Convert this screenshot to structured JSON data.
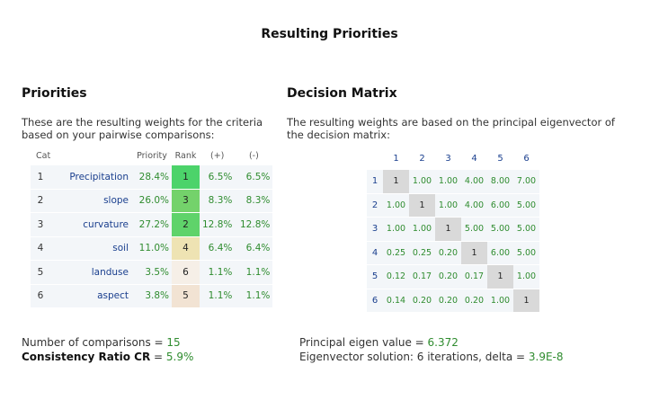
{
  "page_title": "Resulting Priorities",
  "priorities": {
    "title": "Priorities",
    "description": "These are the resulting weights for the criteria based on your pairwise comparisons:",
    "headers": [
      "Cat",
      "Priority",
      "Rank",
      "(+)",
      "(-)"
    ],
    "rows": [
      {
        "idx": "1",
        "name": "Precipitation",
        "priority": "28.4%",
        "rank": "1",
        "plus": "6.5%",
        "minus": "6.5%",
        "rank_color": "#4cd36a"
      },
      {
        "idx": "2",
        "name": "slope",
        "priority": "26.0%",
        "rank": "3",
        "plus": "8.3%",
        "minus": "8.3%",
        "rank_color": "#74d26b"
      },
      {
        "idx": "3",
        "name": "curvature",
        "priority": "27.2%",
        "rank": "2",
        "plus": "12.8%",
        "minus": "12.8%",
        "rank_color": "#5fd36a"
      },
      {
        "idx": "4",
        "name": "soil",
        "priority": "11.0%",
        "rank": "4",
        "plus": "6.4%",
        "minus": "6.4%",
        "rank_color": "#eee3b3"
      },
      {
        "idx": "5",
        "name": "landuse",
        "priority": "3.5%",
        "rank": "6",
        "plus": "1.1%",
        "minus": "1.1%",
        "rank_color": "#f6efe7"
      },
      {
        "idx": "6",
        "name": "aspect",
        "priority": "3.8%",
        "rank": "5",
        "plus": "1.1%",
        "minus": "1.1%",
        "rank_color": "#f2e3d3"
      }
    ]
  },
  "decision_matrix": {
    "title": "Decision Matrix",
    "description": "The resulting weights are based on the principal eigenvector of the decision matrix:",
    "col_headers": [
      "1",
      "2",
      "3",
      "4",
      "5",
      "6"
    ],
    "rows": [
      {
        "label": "1",
        "values": [
          "1",
          "1.00",
          "1.00",
          "4.00",
          "8.00",
          "7.00"
        ]
      },
      {
        "label": "2",
        "values": [
          "1.00",
          "1",
          "1.00",
          "4.00",
          "6.00",
          "5.00"
        ]
      },
      {
        "label": "3",
        "values": [
          "1.00",
          "1.00",
          "1",
          "5.00",
          "5.00",
          "5.00"
        ]
      },
      {
        "label": "4",
        "values": [
          "0.25",
          "0.25",
          "0.20",
          "1",
          "6.00",
          "5.00"
        ]
      },
      {
        "label": "5",
        "values": [
          "0.12",
          "0.17",
          "0.20",
          "0.17",
          "1",
          "1.00"
        ]
      },
      {
        "label": "6",
        "values": [
          "0.14",
          "0.20",
          "0.20",
          "0.20",
          "1.00",
          "1"
        ]
      }
    ]
  },
  "footer": {
    "comparisons_label": "Number of comparisons = ",
    "comparisons_value": "15",
    "cr_label": "Consistency Ratio CR",
    "cr_eq": " = ",
    "cr_value": "5.9%",
    "eigen_label": "Principal eigen value = ",
    "eigen_value": "6.372",
    "eigvec_label": "Eigenvector solution: 6 iterations, delta = ",
    "eigvec_value": "3.9E-8"
  }
}
